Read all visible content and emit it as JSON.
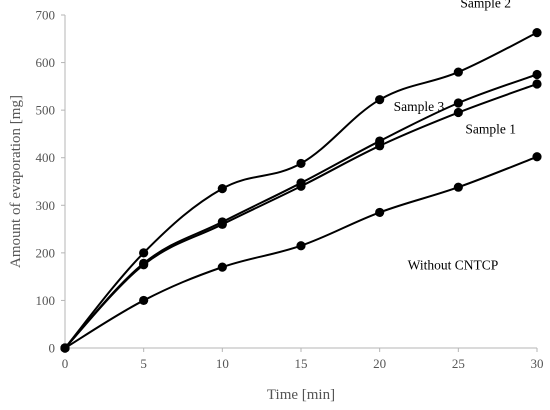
{
  "chart_data": {
    "type": "line",
    "title": "",
    "xlabel": "Time [min]",
    "ylabel": "Amount of evaporation [mg]",
    "x": [
      0,
      5,
      10,
      15,
      20,
      25,
      30
    ],
    "xlim": [
      0,
      30
    ],
    "ylim": [
      0,
      700
    ],
    "xticks": [
      "0",
      "5",
      "10",
      "15",
      "20",
      "25",
      "30"
    ],
    "yticks": [
      "0",
      "100",
      "200",
      "300",
      "400",
      "500",
      "600",
      "700"
    ],
    "grid": false,
    "legend": "none (series labeled directly on the plot)",
    "marker": "filled circle",
    "line_color": "#000000",
    "series": [
      {
        "name": "Sample 2",
        "values": [
          0,
          200,
          335,
          388,
          522,
          580,
          663
        ]
      },
      {
        "name": "Sample 3",
        "values": [
          0,
          178,
          265,
          347,
          435,
          515,
          575
        ]
      },
      {
        "name": "Sample 1",
        "values": [
          0,
          175,
          260,
          340,
          425,
          495,
          555
        ]
      },
      {
        "name": "Without CNTCP",
        "values": [
          0,
          100,
          170,
          215,
          285,
          338,
          402
        ]
      }
    ]
  }
}
